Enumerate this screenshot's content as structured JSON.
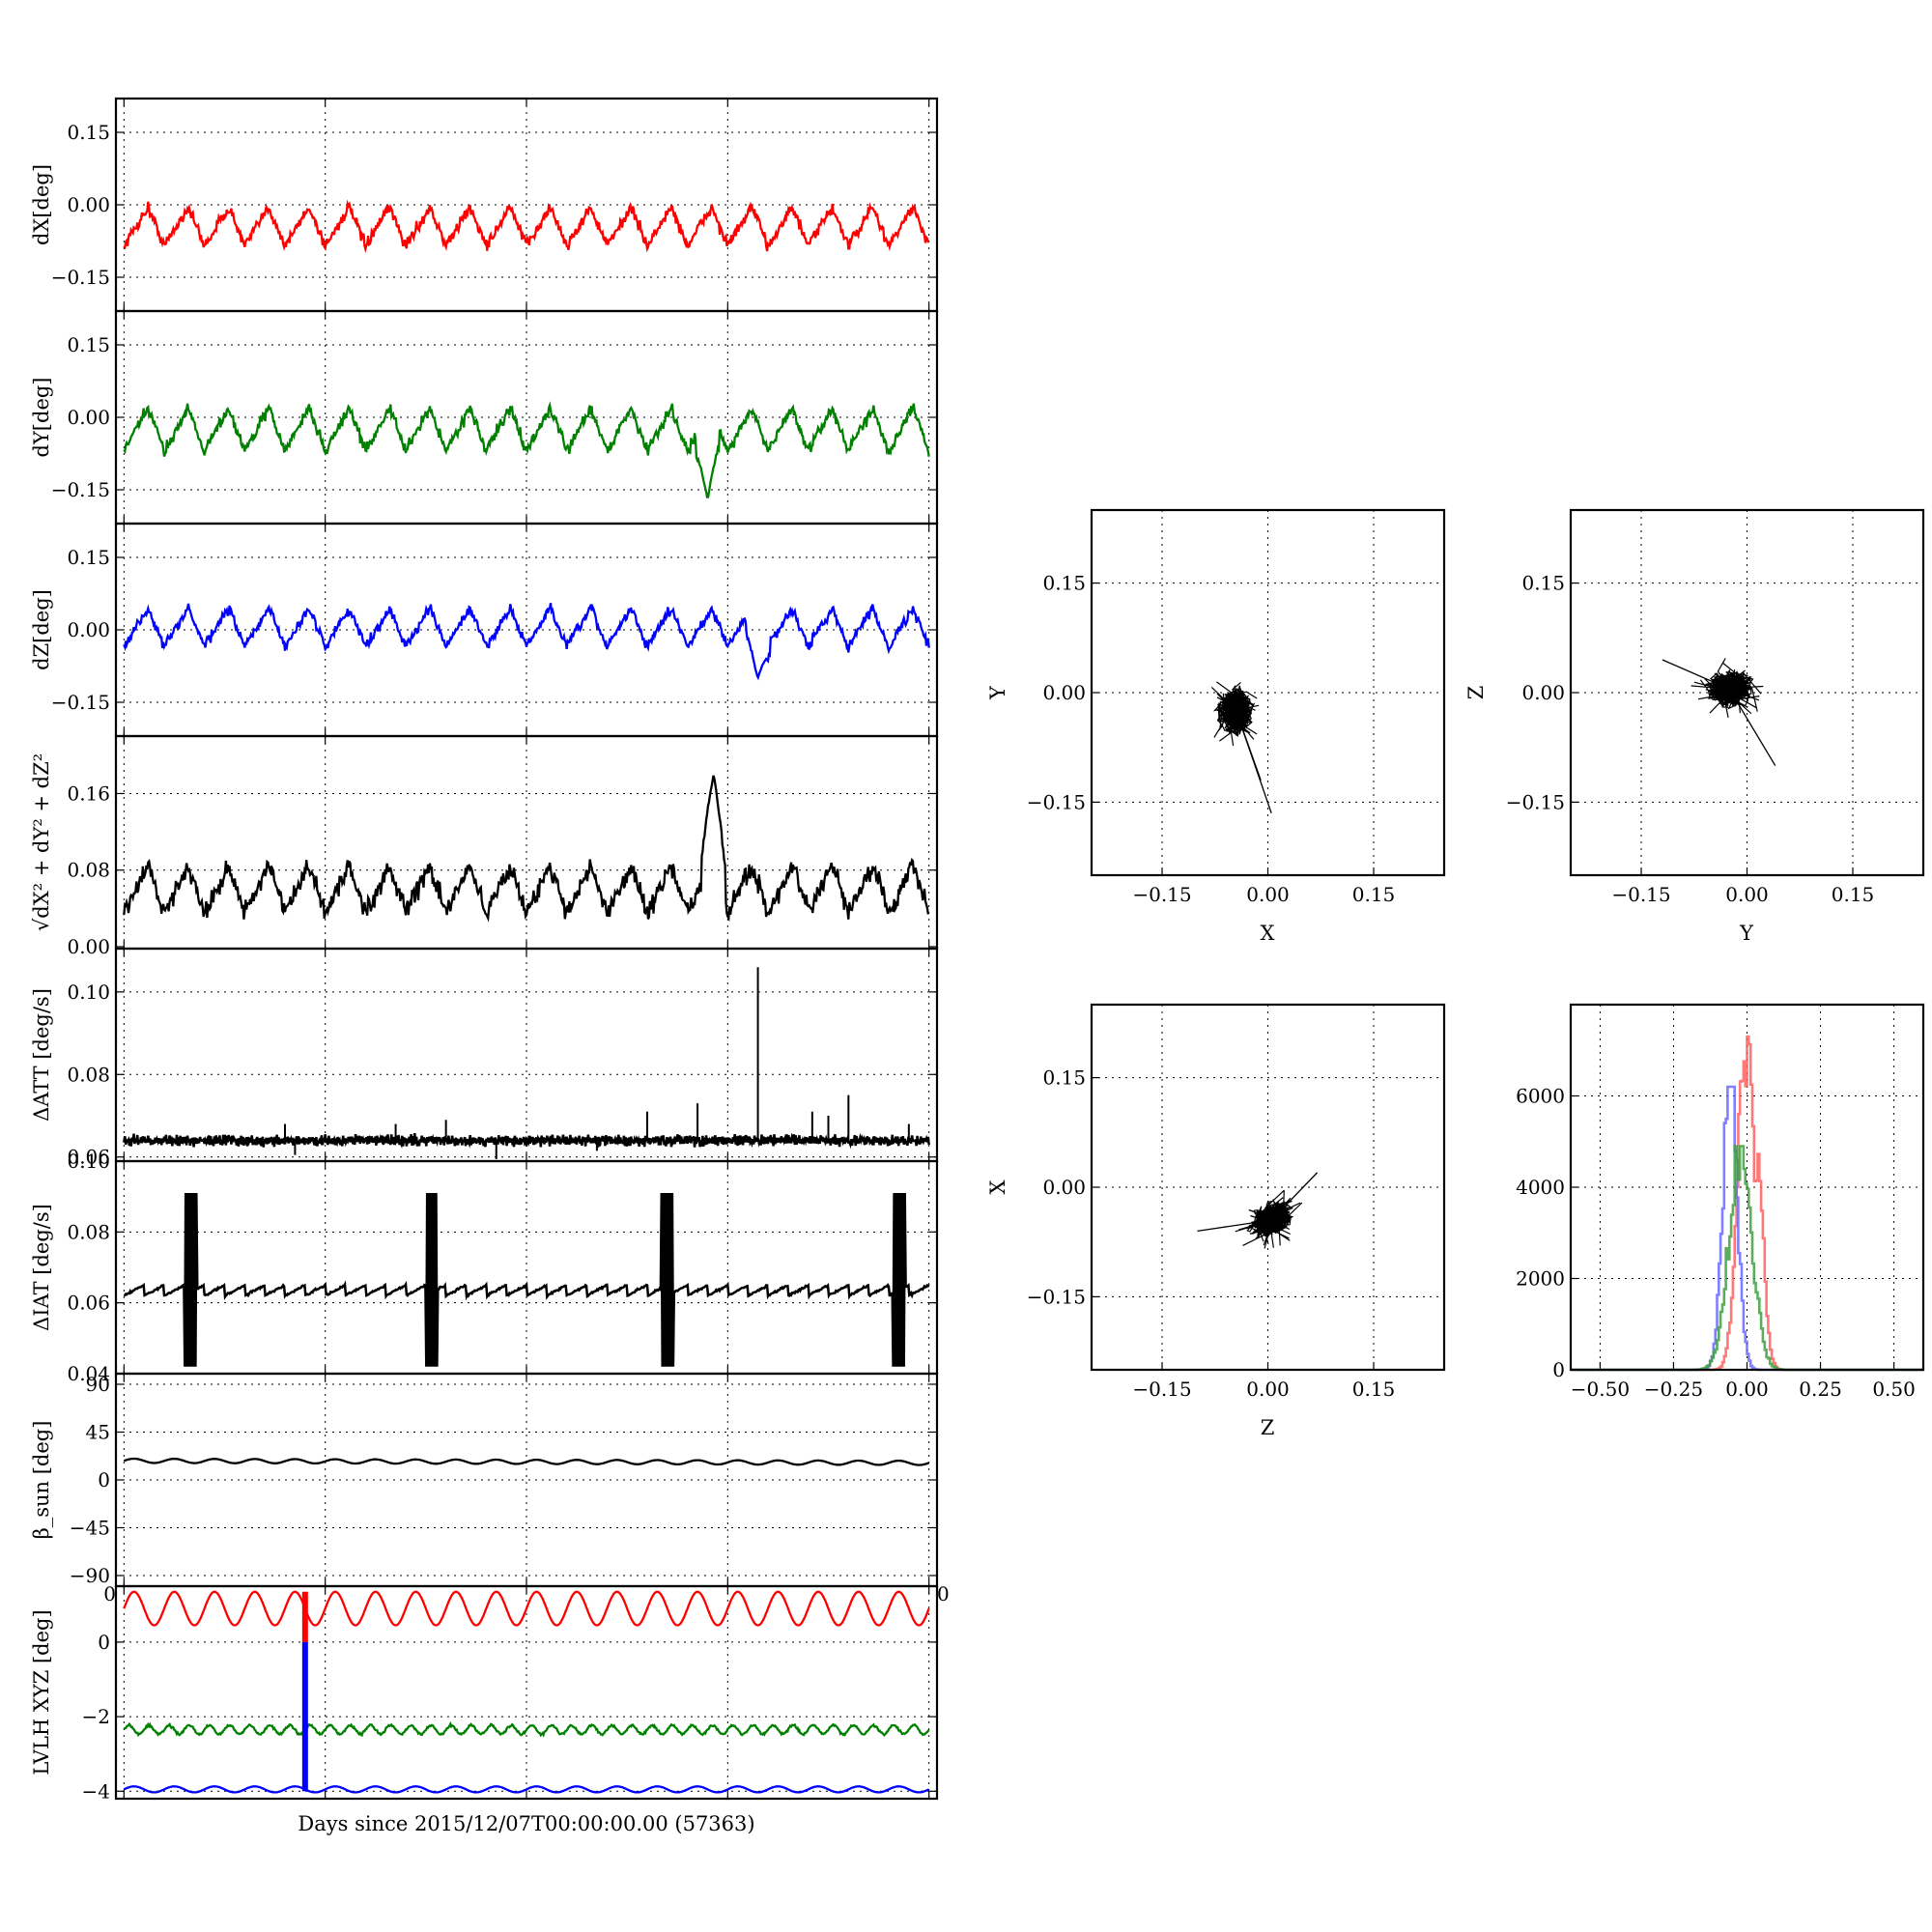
{
  "figure": {
    "xlabel": "Days since 2015/12/07T00:00:00.00 (57363)",
    "stray_tick_left": "0",
    "stray_tick_right": "0"
  },
  "chart_data": [
    {
      "id": "dx",
      "type": "line",
      "ylabel": "dX[deg]",
      "ylim": [
        -0.22,
        0.22
      ],
      "yticks": [
        -0.15,
        0.0,
        0.15
      ],
      "ytick_labels": [
        "−0.15",
        "0.00",
        "0.15"
      ],
      "xlim": [
        -0.04,
        4.04
      ],
      "x_gridlines": [
        0,
        1,
        2,
        3,
        4
      ],
      "grid": true,
      "series": [
        {
          "color": "#ff0000",
          "base": -0.045,
          "amp": 0.04,
          "period": 0.2,
          "noise": 0.012
        }
      ]
    },
    {
      "id": "dy",
      "type": "line",
      "ylabel": "dY[deg]",
      "ylim": [
        -0.22,
        0.22
      ],
      "yticks": [
        -0.15,
        0.0,
        0.15
      ],
      "ytick_labels": [
        "−0.15",
        "0.00",
        "0.15"
      ],
      "xlim": [
        -0.04,
        4.04
      ],
      "x_gridlines": [
        0,
        1,
        2,
        3,
        4
      ],
      "grid": true,
      "series": [
        {
          "color": "#008000",
          "base": -0.025,
          "amp": 0.045,
          "period": 0.2,
          "noise": 0.012,
          "dip_at": 2.9,
          "dip_value": -0.17
        }
      ]
    },
    {
      "id": "dz",
      "type": "line",
      "ylabel": "dZ[deg]",
      "ylim": [
        -0.22,
        0.22
      ],
      "yticks": [
        -0.15,
        0.0,
        0.15
      ],
      "ytick_labels": [
        "−0.15",
        "0.00",
        "0.15"
      ],
      "xlim": [
        -0.04,
        4.04
      ],
      "x_gridlines": [
        0,
        1,
        2,
        3,
        4
      ],
      "grid": true,
      "series": [
        {
          "color": "#0000ff",
          "base": 0.005,
          "amp": 0.04,
          "period": 0.2,
          "noise": 0.01,
          "dip_at": 3.15,
          "dip_value": -0.1
        }
      ]
    },
    {
      "id": "dr",
      "type": "line",
      "ylabel": "√dX² + dY² + dZ²",
      "ylim": [
        -0.002,
        0.22
      ],
      "yticks": [
        0.0,
        0.08,
        0.16
      ],
      "ytick_labels": [
        "0.00",
        "0.08",
        "0.16"
      ],
      "xlim": [
        -0.04,
        4.04
      ],
      "x_gridlines": [
        0,
        1,
        2,
        3,
        4
      ],
      "grid": true,
      "series": [
        {
          "color": "#000000",
          "base": 0.06,
          "amp": 0.025,
          "period": 0.2,
          "noise": 0.01,
          "peak_at": 2.93,
          "peak_value": 0.18
        }
      ]
    },
    {
      "id": "datt",
      "type": "line",
      "ylabel": "ΔATT [deg/s]",
      "ylim": [
        0.059,
        0.1105
      ],
      "yticks": [
        0.06,
        0.08,
        0.1
      ],
      "ytick_labels": [
        "0.06",
        "0.08",
        "0.10"
      ],
      "xlim": [
        -0.04,
        4.04
      ],
      "x_gridlines": [
        0,
        1,
        2,
        3,
        4
      ],
      "grid": true,
      "series": [
        {
          "color": "#000000",
          "base": 0.064,
          "noise": 0.0008,
          "spikes": [
            [
              0.8,
              0.068
            ],
            [
              1.35,
              0.068
            ],
            [
              1.6,
              0.069
            ],
            [
              2.6,
              0.071
            ],
            [
              2.85,
              0.073
            ],
            [
              3.15,
              0.106
            ],
            [
              3.42,
              0.071
            ],
            [
              3.5,
              0.07
            ],
            [
              3.6,
              0.075
            ],
            [
              3.9,
              0.068
            ]
          ],
          "dips": [
            [
              0.85,
              0.0605
            ],
            [
              1.85,
              0.0595
            ],
            [
              2.35,
              0.0615
            ]
          ]
        }
      ]
    },
    {
      "id": "diat",
      "type": "line",
      "ylabel": "ΔIAT [deg/s]",
      "ylim": [
        0.04,
        0.1
      ],
      "yticks": [
        0.04,
        0.06,
        0.08,
        0.1
      ],
      "ytick_labels": [
        "0.04",
        "0.06",
        "0.08",
        "0.10"
      ],
      "xlim": [
        -0.04,
        4.04
      ],
      "x_gridlines": [
        0,
        1,
        2,
        3,
        4
      ],
      "grid": true,
      "series": [
        {
          "color": "#000000",
          "base": 0.0635,
          "sawtooth": 0.003,
          "period": 0.1,
          "bursts": [
            0.33,
            1.53,
            2.7,
            3.85
          ],
          "burst_high": 0.091,
          "burst_low": 0.042
        }
      ]
    },
    {
      "id": "beta",
      "type": "line",
      "ylabel": "β_sun [deg]",
      "ylim": [
        -100,
        100
      ],
      "yticks": [
        -90,
        -45,
        0,
        45,
        90
      ],
      "ytick_labels": [
        "−90",
        "−45",
        "0",
        "45",
        "90"
      ],
      "xlim": [
        -0.04,
        4.04
      ],
      "x_gridlines": [
        0,
        1,
        2,
        3,
        4
      ],
      "grid": true,
      "series": [
        {
          "color": "#000000",
          "base": 18,
          "amp": 2,
          "period": 0.2,
          "drift": -2
        }
      ]
    },
    {
      "id": "lvlh",
      "type": "line",
      "ylabel": "LVLH XYZ [deg]",
      "ylim": [
        -4.2,
        1.5
      ],
      "yticks": [
        -4,
        -2,
        0
      ],
      "ytick_labels": [
        "−4",
        "−2",
        "0"
      ],
      "xlim": [
        -0.04,
        4.04
      ],
      "x_gridlines": [
        0,
        1,
        2,
        3,
        4
      ],
      "grid": true,
      "series": [
        {
          "color": "#ff0000",
          "base": 0.9,
          "amp": 0.45,
          "period": 0.2
        },
        {
          "color": "#008000",
          "base": -2.35,
          "amp": 0.12,
          "period": 0.1
        },
        {
          "color": "#0000ff",
          "base": -3.95,
          "amp": 0.08,
          "period": 0.2
        }
      ],
      "vertical_marker": {
        "x": 0.9,
        "red": [
          0.0,
          1.35
        ],
        "blue": [
          -4.0,
          0.0
        ]
      }
    },
    {
      "id": "sc_xy",
      "type": "scatter",
      "xlabel": "X",
      "ylabel": "Y",
      "xlim": [
        -0.25,
        0.25
      ],
      "ylim": [
        -0.25,
        0.25
      ],
      "xticks": [
        -0.15,
        0.0,
        0.15
      ],
      "yticks": [
        -0.15,
        0.0,
        0.15
      ],
      "tick_labels": [
        "−0.15",
        "0.00",
        "0.15"
      ],
      "grid": true,
      "cloud": {
        "cx": -0.045,
        "cy": -0.025,
        "rx": 0.045,
        "ry": 0.06,
        "tail": [
          [
            -0.01,
            -0.12
          ],
          [
            0.005,
            -0.165
          ]
        ]
      }
    },
    {
      "id": "sc_yz",
      "type": "scatter",
      "xlabel": "Y",
      "ylabel": "Z",
      "xlim": [
        -0.25,
        0.25
      ],
      "ylim": [
        -0.25,
        0.25
      ],
      "xticks": [
        -0.15,
        0.0,
        0.15
      ],
      "yticks": [
        -0.15,
        0.0,
        0.15
      ],
      "tick_labels": [
        "−0.15",
        "0.00",
        "0.15"
      ],
      "grid": true,
      "cloud": {
        "cx": -0.025,
        "cy": 0.005,
        "rx": 0.055,
        "ry": 0.045,
        "tail": [
          [
            -0.12,
            0.045
          ],
          [
            0.04,
            -0.1
          ]
        ]
      }
    },
    {
      "id": "sc_zx",
      "type": "scatter",
      "xlabel": "Z",
      "ylabel": "X",
      "xlim": [
        -0.25,
        0.25
      ],
      "ylim": [
        -0.25,
        0.25
      ],
      "xticks": [
        -0.15,
        0.0,
        0.15
      ],
      "yticks": [
        -0.15,
        0.0,
        0.15
      ],
      "tick_labels": [
        "−0.15",
        "0.00",
        "0.15"
      ],
      "grid": true,
      "cloud": {
        "cx": 0.005,
        "cy": -0.045,
        "rx": 0.055,
        "ry": 0.04,
        "tilt": 0.5,
        "tail": [
          [
            -0.1,
            -0.06
          ],
          [
            0.07,
            0.02
          ]
        ]
      }
    },
    {
      "id": "hist",
      "type": "line",
      "xlim": [
        -0.6,
        0.6
      ],
      "ylim": [
        0,
        8000
      ],
      "xticks": [
        -0.5,
        -0.25,
        0.0,
        0.25,
        0.5
      ],
      "xtick_labels": [
        "−0.50",
        "−0.25",
        "0.00",
        "0.25",
        "0.50"
      ],
      "yticks": [
        0,
        2000,
        4000,
        6000
      ],
      "ytick_labels": [
        "0",
        "2000",
        "4000",
        "6000"
      ],
      "grid": true,
      "series": [
        {
          "color": "#ff6060",
          "center": -0.005,
          "width": 0.04,
          "peak": 7300,
          "secondary": [
            0.03,
            4800
          ]
        },
        {
          "color": "#6a6aff",
          "center": -0.06,
          "width": 0.035,
          "peak": 6200
        },
        {
          "color": "#40a040",
          "center": -0.025,
          "width": 0.055,
          "peak": 4900
        }
      ]
    }
  ]
}
